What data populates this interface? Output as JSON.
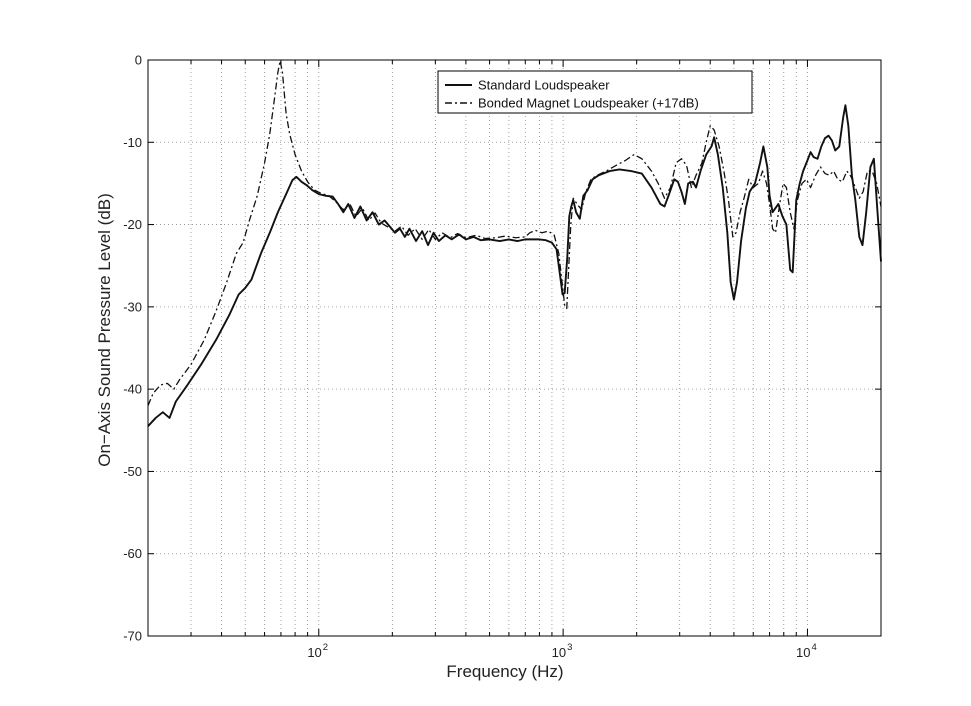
{
  "chart_data": {
    "type": "line",
    "xlabel": "Frequency (Hz)",
    "ylabel": "On−Axis Sound Pressure Level (dB)",
    "xscale": "log",
    "xlim": [
      20,
      20000
    ],
    "ylim": [
      -70,
      0
    ],
    "grid": true,
    "legend_position": "top-right",
    "x_ticks": [
      {
        "value": 100,
        "base": "10",
        "exp": "2"
      },
      {
        "value": 1000,
        "base": "10",
        "exp": "3"
      },
      {
        "value": 10000,
        "base": "10",
        "exp": "4"
      }
    ],
    "y_ticks": [
      {
        "value": 0,
        "label": "0"
      },
      {
        "value": -10,
        "label": "-10"
      },
      {
        "value": -20,
        "label": "-20"
      },
      {
        "value": -30,
        "label": "-30"
      },
      {
        "value": -40,
        "label": "-40"
      },
      {
        "value": -50,
        "label": "-50"
      },
      {
        "value": -60,
        "label": "-60"
      },
      {
        "value": -70,
        "label": "-70"
      }
    ],
    "series": [
      {
        "name": "Standard Loudspeaker",
        "style": "solid",
        "color": "#111111",
        "points": [
          [
            20,
            -44.5
          ],
          [
            21.5,
            -43.5
          ],
          [
            23,
            -42.8
          ],
          [
            24.5,
            -43.5
          ],
          [
            26,
            -41.5
          ],
          [
            29,
            -39.5
          ],
          [
            33,
            -37
          ],
          [
            38,
            -34
          ],
          [
            43,
            -31
          ],
          [
            47,
            -28.5
          ],
          [
            50,
            -27.7
          ],
          [
            53,
            -26.7
          ],
          [
            58,
            -23.5
          ],
          [
            63,
            -21
          ],
          [
            68,
            -18.5
          ],
          [
            73,
            -16.5
          ],
          [
            78,
            -14.6
          ],
          [
            81,
            -14.2
          ],
          [
            85,
            -14.8
          ],
          [
            89,
            -15.2
          ],
          [
            94,
            -15.8
          ],
          [
            100,
            -16.3
          ],
          [
            107,
            -16.5
          ],
          [
            114,
            -16.6
          ],
          [
            120,
            -17.5
          ],
          [
            126,
            -18.5
          ],
          [
            132,
            -17.5
          ],
          [
            140,
            -19.2
          ],
          [
            148,
            -17.8
          ],
          [
            157,
            -19.5
          ],
          [
            166,
            -18.5
          ],
          [
            176,
            -20
          ],
          [
            186,
            -19.5
          ],
          [
            196,
            -20.3
          ],
          [
            205,
            -21
          ],
          [
            215,
            -20.5
          ],
          [
            225,
            -21.5
          ],
          [
            235,
            -20.5
          ],
          [
            250,
            -22
          ],
          [
            265,
            -20.8
          ],
          [
            280,
            -22.5
          ],
          [
            295,
            -21
          ],
          [
            310,
            -22
          ],
          [
            330,
            -21.3
          ],
          [
            350,
            -21.8
          ],
          [
            375,
            -21.2
          ],
          [
            400,
            -21.8
          ],
          [
            430,
            -21.5
          ],
          [
            460,
            -21.9
          ],
          [
            500,
            -21.8
          ],
          [
            550,
            -22
          ],
          [
            600,
            -21.8
          ],
          [
            650,
            -22
          ],
          [
            700,
            -21.8
          ],
          [
            750,
            -21.8
          ],
          [
            800,
            -21.8
          ],
          [
            850,
            -21.9
          ],
          [
            900,
            -22.2
          ],
          [
            940,
            -23
          ],
          [
            970,
            -26
          ],
          [
            995,
            -28.5
          ],
          [
            1015,
            -28.3
          ],
          [
            1040,
            -24
          ],
          [
            1060,
            -19
          ],
          [
            1080,
            -17.8
          ],
          [
            1100,
            -17
          ],
          [
            1130,
            -18.5
          ],
          [
            1170,
            -19.3
          ],
          [
            1210,
            -16.5
          ],
          [
            1260,
            -15.8
          ],
          [
            1320,
            -14.5
          ],
          [
            1400,
            -14
          ],
          [
            1550,
            -13.5
          ],
          [
            1700,
            -13.3
          ],
          [
            1900,
            -13.5
          ],
          [
            2100,
            -13.8
          ],
          [
            2300,
            -15.5
          ],
          [
            2500,
            -17.5
          ],
          [
            2600,
            -17.8
          ],
          [
            2700,
            -16.5
          ],
          [
            2850,
            -14.5
          ],
          [
            2950,
            -14.8
          ],
          [
            3050,
            -16
          ],
          [
            3150,
            -17.5
          ],
          [
            3250,
            -15
          ],
          [
            3400,
            -14.8
          ],
          [
            3500,
            -15.5
          ],
          [
            3650,
            -13.5
          ],
          [
            3850,
            -11.5
          ],
          [
            4050,
            -10.5
          ],
          [
            4150,
            -9.4
          ],
          [
            4300,
            -11.5
          ],
          [
            4500,
            -15.5
          ],
          [
            4700,
            -21
          ],
          [
            4850,
            -27
          ],
          [
            5000,
            -29.1
          ],
          [
            5150,
            -27
          ],
          [
            5350,
            -22
          ],
          [
            5600,
            -18
          ],
          [
            5800,
            -16
          ],
          [
            6100,
            -15
          ],
          [
            6400,
            -12.5
          ],
          [
            6600,
            -10.5
          ],
          [
            6850,
            -13
          ],
          [
            7000,
            -16.5
          ],
          [
            7200,
            -18.5
          ],
          [
            7400,
            -18
          ],
          [
            7600,
            -17.5
          ],
          [
            7900,
            -19
          ],
          [
            8200,
            -20
          ],
          [
            8500,
            -25.5
          ],
          [
            8700,
            -25.8
          ],
          [
            9000,
            -17
          ],
          [
            9300,
            -15
          ],
          [
            9600,
            -13.5
          ],
          [
            10000,
            -12.2
          ],
          [
            10300,
            -11.2
          ],
          [
            10600,
            -11.8
          ],
          [
            11000,
            -12
          ],
          [
            11400,
            -10.5
          ],
          [
            11800,
            -9.5
          ],
          [
            12200,
            -9.2
          ],
          [
            12600,
            -9.8
          ],
          [
            13000,
            -11
          ],
          [
            13500,
            -10.5
          ],
          [
            14000,
            -7
          ],
          [
            14300,
            -5.5
          ],
          [
            14700,
            -8
          ],
          [
            15200,
            -14
          ],
          [
            15700,
            -17
          ],
          [
            16300,
            -21.5
          ],
          [
            16800,
            -22.5
          ],
          [
            17400,
            -18.5
          ],
          [
            18100,
            -13
          ],
          [
            18700,
            -12
          ],
          [
            19300,
            -18
          ],
          [
            20000,
            -24.5
          ]
        ]
      },
      {
        "name": "Bonded Magnet Loudspeaker (+17dB)",
        "style": "dashdot",
        "color": "#111111",
        "points": [
          [
            20,
            -42
          ],
          [
            21,
            -40.5
          ],
          [
            22.5,
            -39.5
          ],
          [
            24,
            -39.3
          ],
          [
            25.5,
            -40
          ],
          [
            27,
            -38.8
          ],
          [
            30,
            -37
          ],
          [
            34,
            -34
          ],
          [
            38,
            -30.5
          ],
          [
            42,
            -27
          ],
          [
            46,
            -23.5
          ],
          [
            49,
            -22.2
          ],
          [
            52,
            -19.5
          ],
          [
            56,
            -16.5
          ],
          [
            60,
            -12.5
          ],
          [
            63,
            -9
          ],
          [
            66,
            -4.5
          ],
          [
            68,
            -1.5
          ],
          [
            69.5,
            -0.1
          ],
          [
            71,
            -1.5
          ],
          [
            73.5,
            -6.5
          ],
          [
            76,
            -9
          ],
          [
            80,
            -11.5
          ],
          [
            85,
            -13.5
          ],
          [
            90,
            -14.8
          ],
          [
            96,
            -15.8
          ],
          [
            102,
            -16.2
          ],
          [
            110,
            -16.5
          ],
          [
            118,
            -17.3
          ],
          [
            126,
            -18.2
          ],
          [
            134,
            -17.5
          ],
          [
            142,
            -19
          ],
          [
            151,
            -18
          ],
          [
            160,
            -19.5
          ],
          [
            170,
            -18.6
          ],
          [
            180,
            -19.8
          ],
          [
            192,
            -20.3
          ],
          [
            205,
            -20.8
          ],
          [
            218,
            -20.2
          ],
          [
            232,
            -21.3
          ],
          [
            248,
            -20.5
          ],
          [
            265,
            -21.8
          ],
          [
            282,
            -20.6
          ],
          [
            300,
            -21.8
          ],
          [
            320,
            -21
          ],
          [
            345,
            -21.6
          ],
          [
            370,
            -21.1
          ],
          [
            400,
            -21.6
          ],
          [
            440,
            -21.3
          ],
          [
            480,
            -21.7
          ],
          [
            530,
            -21.6
          ],
          [
            580,
            -21.4
          ],
          [
            640,
            -21.6
          ],
          [
            700,
            -21.5
          ],
          [
            730,
            -21
          ],
          [
            770,
            -20.7
          ],
          [
            820,
            -21
          ],
          [
            870,
            -20.8
          ],
          [
            920,
            -21.3
          ],
          [
            960,
            -23.5
          ],
          [
            990,
            -27
          ],
          [
            1015,
            -29.8
          ],
          [
            1035,
            -30.2
          ],
          [
            1055,
            -25
          ],
          [
            1075,
            -20
          ],
          [
            1100,
            -16.8
          ],
          [
            1140,
            -17.5
          ],
          [
            1190,
            -18.2
          ],
          [
            1240,
            -16
          ],
          [
            1300,
            -14.5
          ],
          [
            1380,
            -14
          ],
          [
            1500,
            -13.5
          ],
          [
            1650,
            -12.8
          ],
          [
            1800,
            -12.2
          ],
          [
            1950,
            -11.5
          ],
          [
            2100,
            -12
          ],
          [
            2300,
            -13.5
          ],
          [
            2450,
            -15
          ],
          [
            2600,
            -16.8
          ],
          [
            2750,
            -15.5
          ],
          [
            2900,
            -12.5
          ],
          [
            3050,
            -12
          ],
          [
            3200,
            -12.8
          ],
          [
            3350,
            -15.5
          ],
          [
            3500,
            -14
          ],
          [
            3700,
            -12.5
          ],
          [
            3850,
            -10
          ],
          [
            4000,
            -8
          ],
          [
            4150,
            -8.5
          ],
          [
            4350,
            -10.5
          ],
          [
            4550,
            -13.5
          ],
          [
            4750,
            -17
          ],
          [
            4950,
            -21.5
          ],
          [
            5100,
            -21
          ],
          [
            5300,
            -18.5
          ],
          [
            5500,
            -16.8
          ],
          [
            5750,
            -14.5
          ],
          [
            6000,
            -15.5
          ],
          [
            6300,
            -15
          ],
          [
            6550,
            -13.5
          ],
          [
            6800,
            -15
          ],
          [
            7000,
            -17.5
          ],
          [
            7200,
            -20.5
          ],
          [
            7400,
            -21
          ],
          [
            7700,
            -17.5
          ],
          [
            7950,
            -15
          ],
          [
            8200,
            -15.5
          ],
          [
            8500,
            -18.5
          ],
          [
            8800,
            -20.5
          ],
          [
            9100,
            -17
          ],
          [
            9500,
            -15
          ],
          [
            9900,
            -14.5
          ],
          [
            10300,
            -15.5
          ],
          [
            10800,
            -14
          ],
          [
            11300,
            -13
          ],
          [
            11800,
            -13.8
          ],
          [
            12300,
            -14
          ],
          [
            12800,
            -13.5
          ],
          [
            13300,
            -14.5
          ],
          [
            13900,
            -14.8
          ],
          [
            14500,
            -13.5
          ],
          [
            15100,
            -14.2
          ],
          [
            15700,
            -15.5
          ],
          [
            16300,
            -16.8
          ],
          [
            16900,
            -16
          ],
          [
            17600,
            -13.5
          ],
          [
            18400,
            -13.5
          ],
          [
            19200,
            -15
          ],
          [
            20000,
            -17.8
          ]
        ]
      }
    ]
  }
}
